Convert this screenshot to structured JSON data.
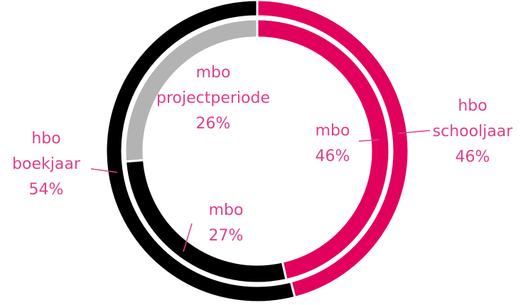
{
  "chart_data": {
    "type": "donut",
    "rings": [
      {
        "name": "hbo",
        "categories": [
          "schooljaar",
          "boekjaar"
        ],
        "values": [
          46,
          54
        ],
        "value_labels": [
          "46%",
          "54%"
        ],
        "colors": [
          "#e2005d",
          "#000000"
        ]
      },
      {
        "name": "mbo",
        "categories": [
          null,
          null,
          "projectperiode"
        ],
        "values": [
          46,
          27,
          26
        ],
        "value_labels": [
          "46%",
          "27%",
          "26%"
        ],
        "colors": [
          "#e2005d",
          "#000000",
          "#b3b3b3"
        ]
      }
    ]
  }
}
